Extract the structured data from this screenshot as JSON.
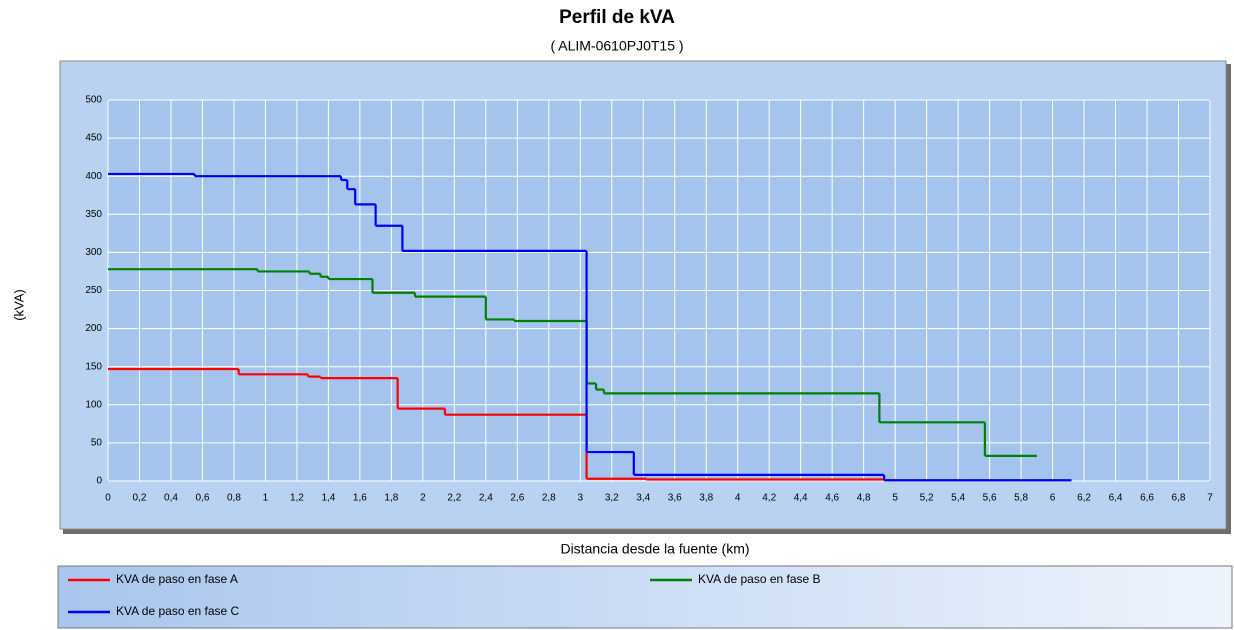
{
  "chart_data": {
    "type": "step",
    "title": "Perfil de kVA",
    "subtitle": "( ALIM-0610PJ0T15 )",
    "y_label": "(kVA)",
    "x_label": "Distancia desde la fuente (km)",
    "xlim": [
      0,
      7
    ],
    "ylim": [
      0,
      500
    ],
    "yticks": [
      0,
      50,
      100,
      150,
      200,
      250,
      300,
      350,
      400,
      450,
      500
    ],
    "xticks": [
      0,
      {
        "value": 0.2,
        "label": "0,2"
      },
      {
        "value": 0.4,
        "label": "0,4"
      },
      {
        "value": 0.6,
        "label": "0,6"
      },
      {
        "value": 0.8,
        "label": "0,8"
      },
      1,
      {
        "value": 1.2,
        "label": "1,2"
      },
      {
        "value": 1.4,
        "label": "1,4"
      },
      {
        "value": 1.6,
        "label": "1,6"
      },
      {
        "value": 1.8,
        "label": "1,8"
      },
      2,
      {
        "value": 2.2,
        "label": "2,2"
      },
      {
        "value": 2.4,
        "label": "2,4"
      },
      {
        "value": 2.6,
        "label": "2,6"
      },
      {
        "value": 2.8,
        "label": "2,8"
      },
      3,
      {
        "value": 3.2,
        "label": "3,2"
      },
      {
        "value": 3.4,
        "label": "3,4"
      },
      {
        "value": 3.6,
        "label": "3,6"
      },
      {
        "value": 3.8,
        "label": "3,8"
      },
      4,
      {
        "value": 4.2,
        "label": "4,2"
      },
      {
        "value": 4.4,
        "label": "4,4"
      },
      {
        "value": 4.6,
        "label": "4,6"
      },
      {
        "value": 4.8,
        "label": "4,8"
      },
      5,
      {
        "value": 5.2,
        "label": "5,2"
      },
      {
        "value": 5.4,
        "label": "5,4"
      },
      {
        "value": 5.6,
        "label": "5,6"
      },
      {
        "value": 5.8,
        "label": "5,8"
      },
      6,
      {
        "value": 6.2,
        "label": "6,2"
      },
      {
        "value": 6.4,
        "label": "6,4"
      },
      {
        "value": 6.6,
        "label": "6,6"
      },
      {
        "value": 6.8,
        "label": "6,8"
      },
      7
    ],
    "grid": true,
    "series": [
      {
        "name": "KVA de paso en fase A",
        "color": "#ff0000",
        "bins": [
          0,
          0.83,
          1.27,
          1.35,
          1.84,
          2.14,
          3.04,
          3.42,
          4.93
        ],
        "values": [
          147,
          140,
          137,
          135,
          95,
          87,
          3,
          2
        ]
      },
      {
        "name": "KVA de paso en fase B",
        "color": "#008000",
        "bins": [
          0,
          0.95,
          1.28,
          1.35,
          1.4,
          1.68,
          1.95,
          2.4,
          2.58,
          3.04,
          3.1,
          3.15,
          4.9,
          5.57,
          5.9
        ],
        "values": [
          278,
          275,
          272,
          268,
          265,
          247,
          242,
          212,
          210,
          128,
          120,
          115,
          77,
          33
        ]
      },
      {
        "name": "KVA de paso en fase C",
        "color": "#0000ff",
        "bins": [
          0,
          0.55,
          1.48,
          1.52,
          1.57,
          1.7,
          1.87,
          3.04,
          3.34,
          4.93,
          6.12
        ],
        "values": [
          403,
          400,
          395,
          383,
          363,
          335,
          302,
          38,
          8,
          1
        ]
      }
    ]
  }
}
